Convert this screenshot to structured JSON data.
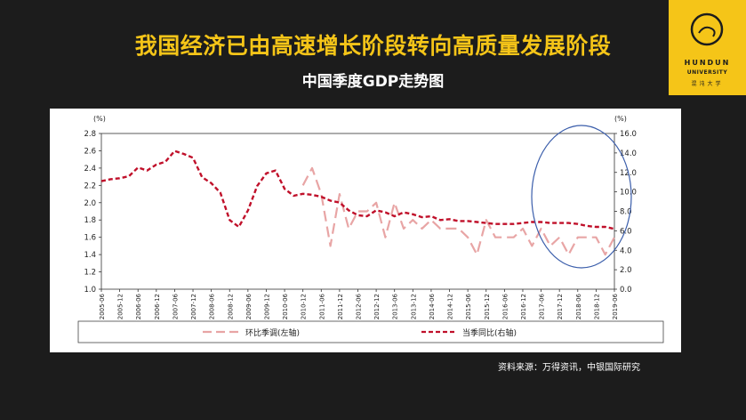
{
  "slide": {
    "headline": "我国经济已由高速增长阶段转向高质量发展阶段",
    "subheadline": "中国季度GDP走势图",
    "source": "资料来源：万得资讯，中银国际研究",
    "logo": {
      "line1": "HUNDUN",
      "line2": "UNIVERSITY",
      "line3": "混沌大学"
    },
    "colors": {
      "background": "#1c1c1c",
      "headline": "#f5c518",
      "logo_bg": "#f5c518"
    }
  },
  "chart_data": {
    "type": "line",
    "left_unit": "(%)",
    "right_unit": "(%)",
    "left_ylim": [
      1.0,
      2.8
    ],
    "left_ticks": [
      "1.0",
      "1.2",
      "1.4",
      "1.6",
      "1.8",
      "2.0",
      "2.2",
      "2.4",
      "2.6",
      "2.8"
    ],
    "right_ylim": [
      0.0,
      16.0
    ],
    "right_ticks": [
      "0.0",
      "2.0",
      "4.0",
      "6.0",
      "8.0",
      "10.0",
      "12.0",
      "14.0",
      "16.0"
    ],
    "x_tick_labels": [
      "2005-06",
      "2005-12",
      "2006-06",
      "2006-12",
      "2007-06",
      "2007-12",
      "2008-06",
      "2008-12",
      "2009-06",
      "2009-12",
      "2010-06",
      "2010-12",
      "2011-06",
      "2011-12",
      "2012-06",
      "2012-12",
      "2013-06",
      "2013-12",
      "2014-06",
      "2014-12",
      "2015-06",
      "2015-12",
      "2016-06",
      "2016-12",
      "2017-06",
      "2017-12",
      "2018-06",
      "2018-12",
      "2019-06"
    ],
    "x": [
      "2005-06",
      "2005-09",
      "2005-12",
      "2006-03",
      "2006-06",
      "2006-09",
      "2006-12",
      "2007-03",
      "2007-06",
      "2007-09",
      "2007-12",
      "2008-03",
      "2008-06",
      "2008-09",
      "2008-12",
      "2009-03",
      "2009-06",
      "2009-09",
      "2009-12",
      "2010-03",
      "2010-06",
      "2010-09",
      "2010-12",
      "2011-03",
      "2011-06",
      "2011-09",
      "2011-12",
      "2012-03",
      "2012-06",
      "2012-09",
      "2012-12",
      "2013-03",
      "2013-06",
      "2013-09",
      "2013-12",
      "2014-03",
      "2014-06",
      "2014-09",
      "2014-12",
      "2015-03",
      "2015-06",
      "2015-09",
      "2015-12",
      "2016-03",
      "2016-06",
      "2016-09",
      "2016-12",
      "2017-03",
      "2017-06",
      "2017-09",
      "2017-12",
      "2018-03",
      "2018-06",
      "2018-09",
      "2018-12",
      "2019-03",
      "2019-06"
    ],
    "series": [
      {
        "name": "环比季调(左轴)",
        "axis": "left",
        "color": "#e8a5a5",
        "dash": "12,6",
        "values": [
          null,
          null,
          null,
          null,
          null,
          null,
          null,
          null,
          null,
          null,
          null,
          null,
          null,
          null,
          null,
          null,
          null,
          null,
          null,
          null,
          null,
          null,
          2.2,
          2.4,
          2.1,
          1.5,
          2.1,
          1.7,
          1.9,
          1.9,
          2.0,
          1.6,
          2.0,
          1.7,
          1.8,
          1.7,
          1.8,
          1.7,
          1.7,
          1.7,
          1.6,
          1.4,
          1.8,
          1.6,
          1.6,
          1.6,
          1.7,
          1.5,
          1.7,
          1.5,
          1.6,
          1.4,
          1.6,
          1.6,
          1.6,
          1.4,
          1.6
        ]
      },
      {
        "name": "当季同比(右轴)",
        "axis": "right",
        "color": "#c0102a",
        "dash": "5,3",
        "values": [
          11.1,
          11.3,
          11.4,
          11.6,
          12.5,
          12.2,
          12.8,
          13.1,
          14.2,
          13.9,
          13.5,
          11.5,
          10.9,
          9.9,
          7.1,
          6.4,
          8.1,
          10.6,
          11.9,
          12.2,
          10.3,
          9.6,
          9.8,
          9.7,
          9.5,
          9.1,
          8.9,
          8.1,
          7.6,
          7.5,
          8.1,
          7.9,
          7.5,
          7.9,
          7.7,
          7.4,
          7.5,
          7.1,
          7.2,
          7.0,
          7.0,
          6.9,
          6.8,
          6.7,
          6.7,
          6.7,
          6.8,
          6.9,
          6.9,
          6.8,
          6.8,
          6.8,
          6.7,
          6.5,
          6.4,
          6.4,
          6.2
        ]
      }
    ],
    "annotation": "ellipse highlighting 2017-2019"
  }
}
